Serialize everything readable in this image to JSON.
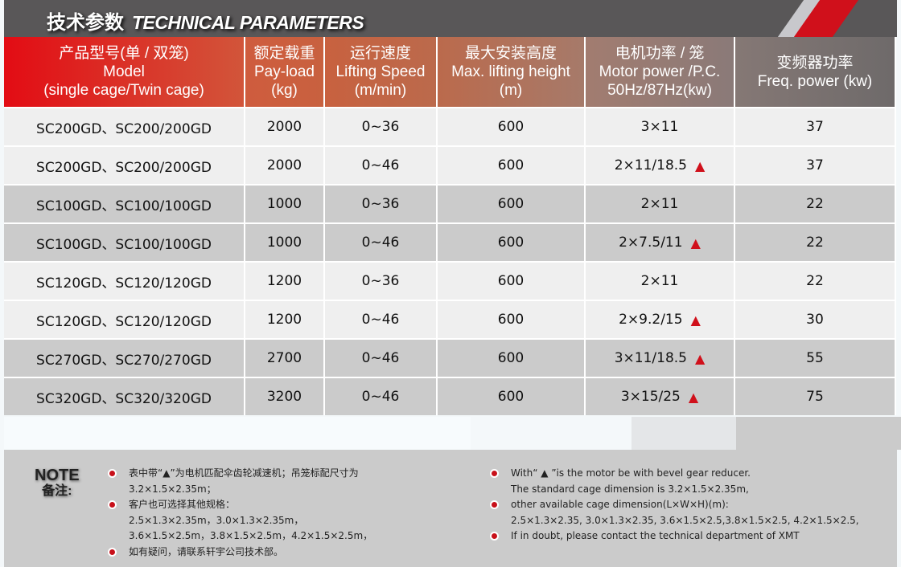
{
  "title": {
    "cn": "技术参数",
    "en": "TECHNICAL PARAMETERS"
  },
  "headers": [
    {
      "cn": "产品型号(单 / 双笼)",
      "en": "Model",
      "unit": "(single cage/Twin cage)"
    },
    {
      "cn": "额定载重",
      "en": "Pay-load",
      "unit": "(kg)"
    },
    {
      "cn": "运行速度",
      "en": "Lifting Speed",
      "unit": "(m/min)"
    },
    {
      "cn": "最大安装高度",
      "en": "Max. lifting height",
      "unit": "(m)"
    },
    {
      "cn": "电机功率 / 笼",
      "en": "Motor power /P.C.",
      "unit": "50Hz/87Hz(kw)"
    },
    {
      "cn": "变频器功率",
      "en": "Freq. power (kw)",
      "unit": ""
    }
  ],
  "rows": [
    {
      "model": "SC200GD、SC200/200GD",
      "load": "2000",
      "speed": "0~36",
      "height": "600",
      "motor": "3×11",
      "mark": "",
      "freq": "37"
    },
    {
      "model": "SC200GD、SC200/200GD",
      "load": "2000",
      "speed": "0~46",
      "height": "600",
      "motor": "2×11/18.5",
      "mark": "▲",
      "freq": "37"
    },
    {
      "model": "SC100GD、SC100/100GD",
      "load": "1000",
      "speed": "0~36",
      "height": "600",
      "motor": "2×11",
      "mark": "",
      "freq": "22"
    },
    {
      "model": "SC100GD、SC100/100GD",
      "load": "1000",
      "speed": "0~46",
      "height": "600",
      "motor": "2×7.5/11",
      "mark": "▲",
      "freq": "22"
    },
    {
      "model": "SC120GD、SC120/120GD",
      "load": "1200",
      "speed": "0~36",
      "height": "600",
      "motor": "2×11",
      "mark": "",
      "freq": "22"
    },
    {
      "model": "SC120GD、SC120/120GD",
      "load": "1200",
      "speed": "0~46",
      "height": "600",
      "motor": "2×9.2/15",
      "mark": "▲",
      "freq": "30"
    },
    {
      "model": "SC270GD、SC270/270GD",
      "load": "2700",
      "speed": "0~46",
      "height": "600",
      "motor": "3×11/18.5",
      "mark": "▲",
      "freq": "55"
    },
    {
      "model": "SC320GD、SC320/320GD",
      "load": "3200",
      "speed": "0~46",
      "height": "600",
      "motor": "3×15/25",
      "mark": "▲",
      "freq": "75"
    }
  ],
  "note": {
    "label_en": "NOTE",
    "label_cn": "备注:",
    "cn": [
      [
        "表中带“▲”为电机匹配伞齿轮减速机；吊笼标配尺寸为",
        "3.2×1.5×2.35m；"
      ],
      [
        "客户也可选择其他规格：",
        "2.5×1.3×2.35m，3.0×1.3×2.35m，",
        "3.6×1.5×2.5m，3.8×1.5×2.5m，4.2×1.5×2.5m，"
      ],
      [
        "如有疑问，请联系轩宇公司技术部。"
      ]
    ],
    "en": [
      [
        "With“ ▲ ”is the motor be with bevel gear reducer.",
        "The standard cage dimension is 3.2×1.5×2.35m,"
      ],
      [
        "other available cage dimension(L×W×H)(m):",
        "2.5×1.3×2.35, 3.0×1.3×2.35, 3.6×1.5×2.5,3.8×1.5×2.5, 4.2×1.5×2.5,"
      ],
      [
        "If in doubt, please contact the technical department of XMT"
      ]
    ]
  },
  "colors": {
    "accent_red": "#d0101b",
    "header_start": "#e30c14",
    "header_end": "#6e6a6a"
  }
}
